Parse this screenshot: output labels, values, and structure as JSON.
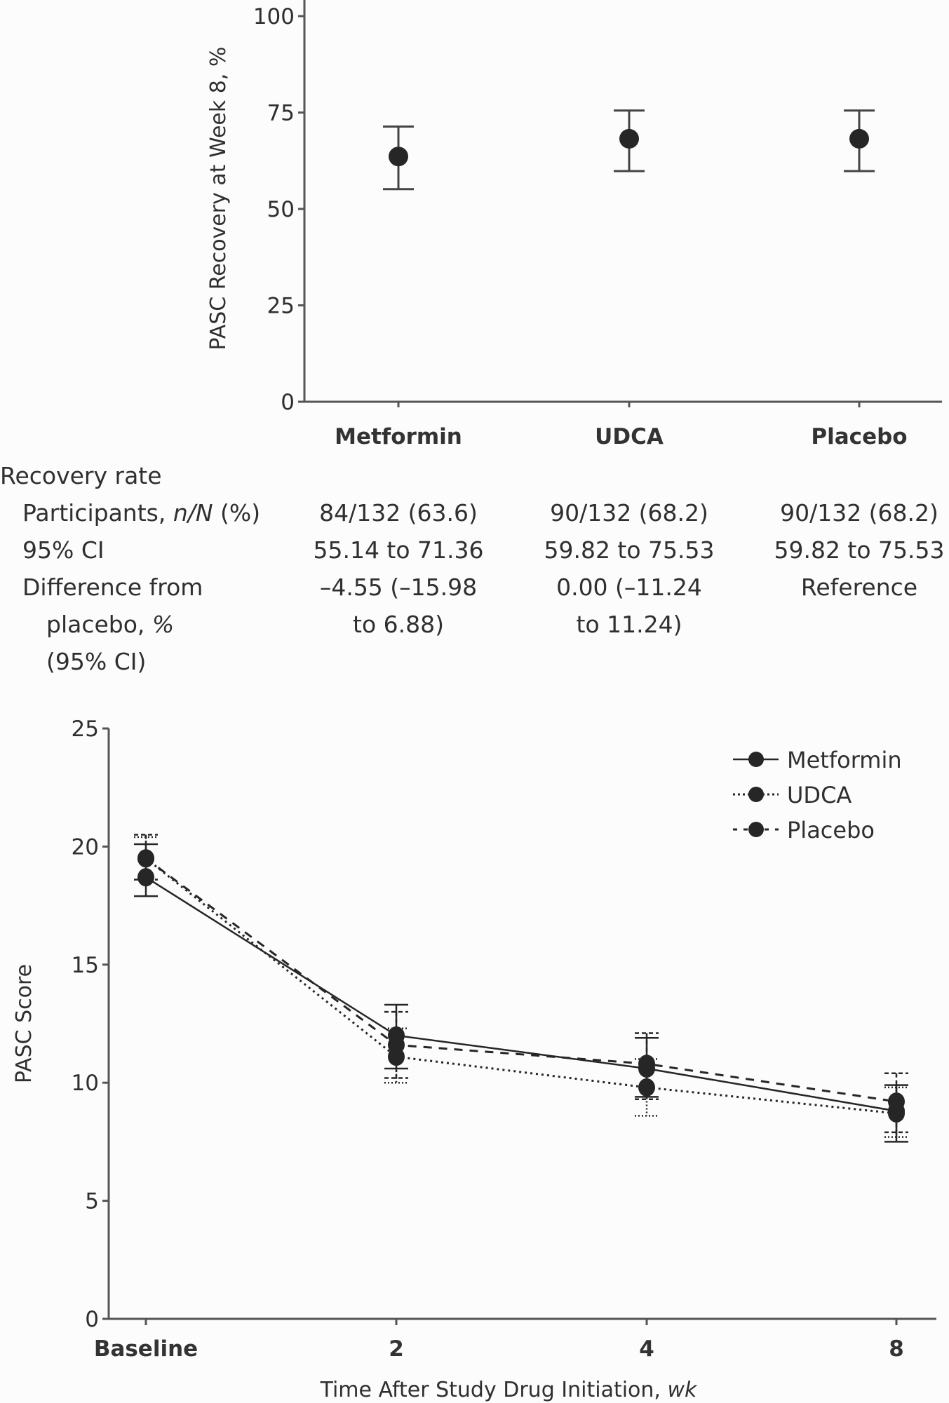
{
  "chart_data": [
    {
      "type": "scatter",
      "title": "",
      "ylabel": "PASC Recovery at Week 8, %",
      "xlabel": "",
      "ylim": [
        0,
        100
      ],
      "yticks": [
        "0",
        "25",
        "50",
        "75",
        "100"
      ],
      "categories": [
        "Metformin",
        "UDCA",
        "Placebo"
      ],
      "values": [
        63.6,
        68.2,
        68.2
      ],
      "ci_low": [
        55.14,
        59.82,
        59.82
      ],
      "ci_high": [
        71.36,
        75.53,
        75.53
      ],
      "grid": false
    },
    {
      "type": "line",
      "title": "",
      "ylabel": "PASC Score",
      "xlabel_main": "Time After Study Drug Initiation, ",
      "xlabel_unit": "wk",
      "ylim": [
        0,
        25
      ],
      "yticks": [
        "0",
        "5",
        "10",
        "15",
        "20",
        "25"
      ],
      "categories": [
        "Baseline",
        "2",
        "4",
        "8"
      ],
      "legend_position": "top-right",
      "grid": false,
      "series": [
        {
          "name": "Metformin",
          "style": "solid",
          "values": [
            18.7,
            12.0,
            10.6,
            8.8
          ],
          "err_low": [
            17.9,
            10.6,
            9.4,
            7.5
          ],
          "err_high": [
            20.1,
            13.3,
            11.9,
            9.9
          ]
        },
        {
          "name": "UDCA",
          "style": "dotted",
          "values": [
            19.5,
            11.1,
            9.8,
            8.7
          ],
          "err_low": [
            18.6,
            10.0,
            8.6,
            7.7
          ],
          "err_high": [
            20.4,
            12.3,
            11.0,
            9.8
          ]
        },
        {
          "name": "Placebo",
          "style": "dashed",
          "values": [
            19.5,
            11.6,
            10.8,
            9.2
          ],
          "err_low": [
            18.6,
            10.2,
            9.3,
            7.9
          ],
          "err_high": [
            20.5,
            13.0,
            12.1,
            10.4
          ]
        }
      ]
    }
  ],
  "table": {
    "section_label": "Recovery rate",
    "row_labels": {
      "participants_prefix": "Participants, ",
      "participants_ital": "n/N",
      "participants_suffix": " (%)",
      "ci": "95% CI",
      "diff_line1": "Difference from",
      "diff_line2_prefix": "placebo, ",
      "diff_line2_ital": "%",
      "diff_line3": "(95% CI)"
    },
    "columns": [
      {
        "participants": "84/132 (63.6)",
        "ci": "55.14 to 71.36",
        "diff_line1": "–4.55 (–15.98",
        "diff_line2": "to 6.88)"
      },
      {
        "participants": "90/132 (68.2)",
        "ci": "59.82 to 75.53",
        "diff_line1": "0.00 (–11.24",
        "diff_line2": "to 11.24)"
      },
      {
        "participants": "90/132 (68.2)",
        "ci": "59.82 to 75.53",
        "diff_line1": "Reference",
        "diff_line2": ""
      }
    ]
  }
}
